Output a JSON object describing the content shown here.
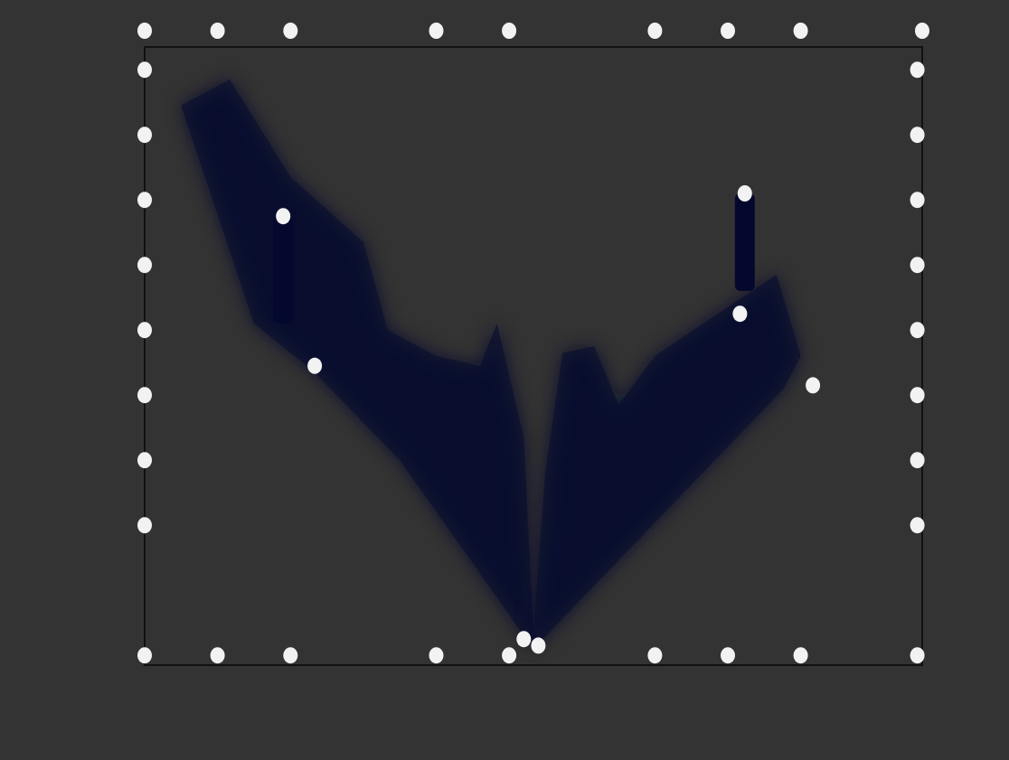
{
  "chart_data": {
    "type": "area",
    "title": "",
    "xlabel": "",
    "ylabel": "",
    "x_ticks": [],
    "y_ticks": [],
    "xlim": [
      -16,
      16
    ],
    "ylim": [
      0,
      19
    ],
    "grid": false,
    "colors": {
      "background": "#333333",
      "density": "#05082e",
      "frame": "#111111",
      "marker": "#f2f2f2"
    },
    "density_regions": [
      {
        "name": "",
        "outline": [
          [
            0,
            0.5
          ],
          [
            -5.5,
            6.3
          ],
          [
            -9,
            9
          ],
          [
            -11.5,
            10.5
          ],
          [
            -14.5,
            17.2
          ],
          [
            -12.5,
            18
          ],
          [
            -10,
            15
          ],
          [
            -7,
            13
          ],
          [
            -6,
            10.3
          ],
          [
            -4,
            9.5
          ],
          [
            -2.2,
            9.2
          ],
          [
            -1.5,
            10.5
          ],
          [
            -0.4,
            7
          ],
          [
            0,
            1
          ]
        ]
      },
      {
        "name": "",
        "outline": [
          [
            0,
            0.5
          ],
          [
            10.3,
            8.5
          ],
          [
            11,
            9.5
          ],
          [
            10,
            12
          ],
          [
            8,
            11
          ],
          [
            5,
            9.5
          ],
          [
            3.5,
            8
          ],
          [
            2.5,
            9.8
          ],
          [
            1.2,
            9.6
          ],
          [
            0.5,
            6
          ],
          [
            0,
            1
          ]
        ]
      }
    ],
    "bands": [
      {
        "x": -10.3,
        "y0": 10.5,
        "y1": 13.8
      },
      {
        "x": 8.7,
        "y0": 11.5,
        "y1": 14.5
      }
    ],
    "points": [
      {
        "x": -16,
        "y": 19.5
      },
      {
        "x": -13,
        "y": 19.5
      },
      {
        "x": -10,
        "y": 19.5
      },
      {
        "x": -4,
        "y": 19.5
      },
      {
        "x": -1,
        "y": 19.5
      },
      {
        "x": 5,
        "y": 19.5
      },
      {
        "x": 8,
        "y": 19.5
      },
      {
        "x": 11,
        "y": 19.5
      },
      {
        "x": 16,
        "y": 19.5
      },
      {
        "x": -16,
        "y": 18.3
      },
      {
        "x": -16,
        "y": 16.3
      },
      {
        "x": -16,
        "y": 14.3
      },
      {
        "x": -16,
        "y": 12.3
      },
      {
        "x": -16,
        "y": 10.3
      },
      {
        "x": -16,
        "y": 8.3
      },
      {
        "x": -16,
        "y": 6.3
      },
      {
        "x": -16,
        "y": 4.3
      },
      {
        "x": -16,
        "y": 0.3
      },
      {
        "x": 15.8,
        "y": 18.3
      },
      {
        "x": 15.8,
        "y": 16.3
      },
      {
        "x": 15.8,
        "y": 14.3
      },
      {
        "x": 15.8,
        "y": 12.3
      },
      {
        "x": 15.8,
        "y": 10.3
      },
      {
        "x": 15.8,
        "y": 8.3
      },
      {
        "x": 15.8,
        "y": 6.3
      },
      {
        "x": 15.8,
        "y": 4.3
      },
      {
        "x": 15.8,
        "y": 0.3
      },
      {
        "x": -13,
        "y": 0.3
      },
      {
        "x": -10,
        "y": 0.3
      },
      {
        "x": -4,
        "y": 0.3
      },
      {
        "x": -1,
        "y": 0.3
      },
      {
        "x": 5,
        "y": 0.3
      },
      {
        "x": 8,
        "y": 0.3
      },
      {
        "x": 11,
        "y": 0.3
      },
      {
        "x": -0.4,
        "y": 0.8
      },
      {
        "x": 0.2,
        "y": 0.6
      },
      {
        "x": -9,
        "y": 9.2
      },
      {
        "x": -10.3,
        "y": 13.8
      },
      {
        "x": 8.7,
        "y": 14.5
      },
      {
        "x": 8.5,
        "y": 10.8
      },
      {
        "x": 11.5,
        "y": 8.6
      }
    ]
  }
}
